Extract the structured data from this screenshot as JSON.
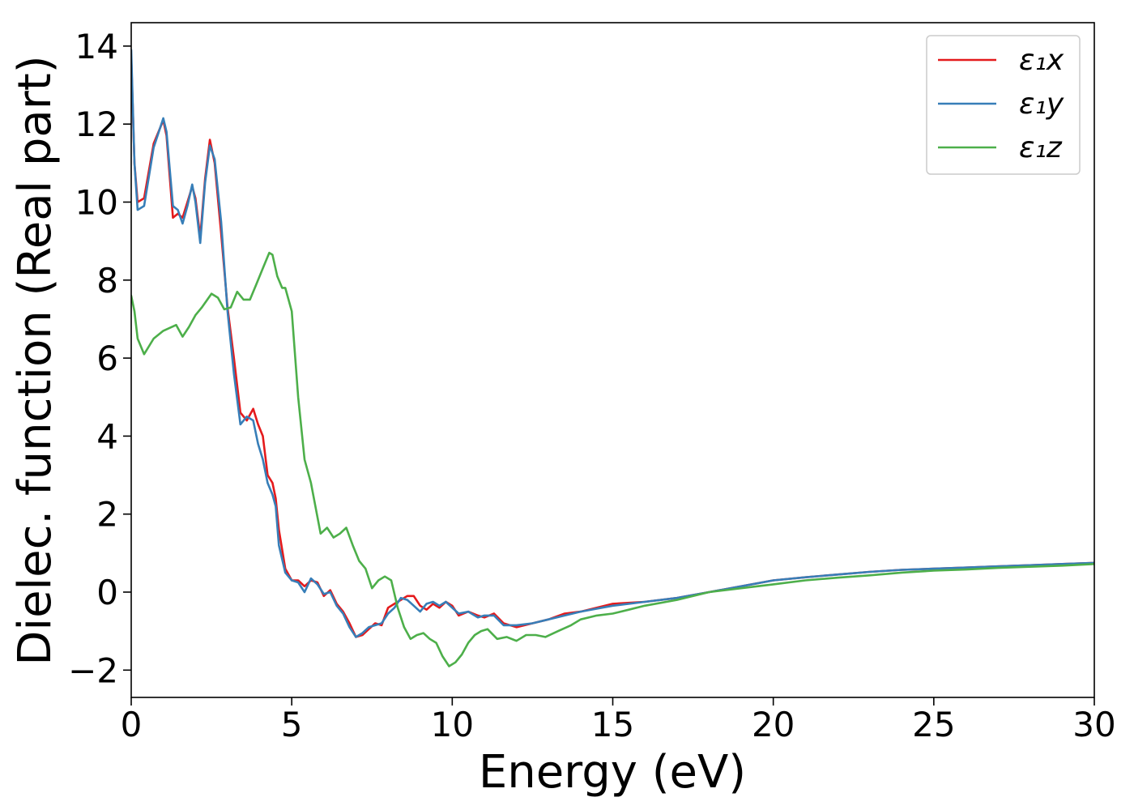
{
  "chart_data": {
    "type": "line",
    "xlabel": "Energy (eV)",
    "ylabel": "Dielec. function (Real part)",
    "xlim": [
      0,
      30
    ],
    "ylim": [
      -2.7,
      14.6
    ],
    "xticks": [
      0,
      5,
      10,
      15,
      20,
      25,
      30
    ],
    "yticks": [
      -2,
      0,
      2,
      4,
      6,
      8,
      10,
      12,
      14
    ],
    "ytick_labels": [
      "−2",
      "0",
      "2",
      "4",
      "6",
      "8",
      "10",
      "12",
      "14"
    ],
    "grid": false,
    "legend_position": "top-right",
    "series": [
      {
        "name": "ε₁x",
        "color": "#e41a1c",
        "x": [
          0,
          0.1,
          0.2,
          0.4,
          0.7,
          1.0,
          1.1,
          1.3,
          1.45,
          1.6,
          1.75,
          1.9,
          2.0,
          2.15,
          2.3,
          2.45,
          2.6,
          2.8,
          3.0,
          3.2,
          3.4,
          3.6,
          3.8,
          3.95,
          4.1,
          4.25,
          4.4,
          4.5,
          4.6,
          4.8,
          5.0,
          5.2,
          5.4,
          5.6,
          5.8,
          6.0,
          6.2,
          6.4,
          6.6,
          6.8,
          7.0,
          7.2,
          7.4,
          7.6,
          7.8,
          8.0,
          8.2,
          8.4,
          8.6,
          8.8,
          9.0,
          9.2,
          9.4,
          9.6,
          9.8,
          10.0,
          10.2,
          10.5,
          10.8,
          11.0,
          11.3,
          11.6,
          12.0,
          12.5,
          13.0,
          13.5,
          14.0,
          15.0,
          16.0,
          17.0,
          18.0,
          19.0,
          20.0,
          21.0,
          22.0,
          23.0,
          24.0,
          25.0,
          26.0,
          27.0,
          28.0,
          29.0,
          30.0
        ],
        "values": [
          13.7,
          11.0,
          10.0,
          10.1,
          11.5,
          12.1,
          11.7,
          9.6,
          9.7,
          9.6,
          10.0,
          10.4,
          10.1,
          9.1,
          10.6,
          11.6,
          11.0,
          9.2,
          7.3,
          6.0,
          4.6,
          4.4,
          4.7,
          4.3,
          4.0,
          3.0,
          2.8,
          2.4,
          1.6,
          0.6,
          0.3,
          0.3,
          0.15,
          0.3,
          0.25,
          -0.1,
          0.05,
          -0.3,
          -0.5,
          -0.8,
          -1.15,
          -1.1,
          -0.95,
          -0.8,
          -0.85,
          -0.4,
          -0.3,
          -0.2,
          -0.1,
          -0.1,
          -0.35,
          -0.45,
          -0.3,
          -0.4,
          -0.25,
          -0.35,
          -0.6,
          -0.5,
          -0.6,
          -0.65,
          -0.55,
          -0.8,
          -0.9,
          -0.8,
          -0.7,
          -0.55,
          -0.5,
          -0.3,
          -0.25,
          -0.15,
          0.0,
          0.15,
          0.3,
          0.38,
          0.45,
          0.52,
          0.57,
          0.6,
          0.63,
          0.66,
          0.69,
          0.72,
          0.75
        ]
      },
      {
        "name": "ε₁y",
        "color": "#377eb8",
        "x": [
          0,
          0.1,
          0.2,
          0.4,
          0.7,
          1.0,
          1.1,
          1.3,
          1.45,
          1.6,
          1.75,
          1.9,
          2.0,
          2.15,
          2.3,
          2.45,
          2.6,
          2.8,
          3.0,
          3.2,
          3.4,
          3.6,
          3.8,
          3.95,
          4.1,
          4.25,
          4.4,
          4.5,
          4.6,
          4.8,
          5.0,
          5.2,
          5.4,
          5.6,
          5.8,
          6.0,
          6.2,
          6.4,
          6.6,
          6.8,
          7.0,
          7.2,
          7.4,
          7.6,
          7.8,
          8.0,
          8.2,
          8.4,
          8.6,
          8.8,
          9.0,
          9.2,
          9.4,
          9.6,
          9.8,
          10.0,
          10.2,
          10.5,
          10.8,
          11.0,
          11.3,
          11.6,
          12.0,
          12.5,
          13.0,
          13.5,
          14.0,
          15.0,
          16.0,
          17.0,
          18.0,
          19.0,
          20.0,
          21.0,
          22.0,
          23.0,
          24.0,
          25.0,
          26.0,
          27.0,
          28.0,
          29.0,
          30.0
        ],
        "values": [
          13.9,
          11.0,
          9.8,
          9.9,
          11.4,
          12.15,
          11.8,
          9.9,
          9.8,
          9.45,
          9.9,
          10.45,
          10.0,
          8.95,
          10.5,
          11.45,
          11.1,
          9.5,
          7.2,
          5.6,
          4.3,
          4.5,
          4.4,
          3.8,
          3.4,
          2.8,
          2.5,
          2.2,
          1.2,
          0.5,
          0.3,
          0.25,
          0.0,
          0.35,
          0.2,
          -0.05,
          0.0,
          -0.35,
          -0.55,
          -0.9,
          -1.15,
          -1.05,
          -0.9,
          -0.85,
          -0.8,
          -0.55,
          -0.4,
          -0.15,
          -0.2,
          -0.35,
          -0.5,
          -0.3,
          -0.25,
          -0.35,
          -0.25,
          -0.4,
          -0.55,
          -0.5,
          -0.65,
          -0.6,
          -0.6,
          -0.85,
          -0.85,
          -0.8,
          -0.7,
          -0.6,
          -0.5,
          -0.35,
          -0.25,
          -0.15,
          0.0,
          0.15,
          0.3,
          0.38,
          0.45,
          0.52,
          0.57,
          0.6,
          0.63,
          0.66,
          0.69,
          0.72,
          0.75
        ]
      },
      {
        "name": "ε₁z",
        "color": "#4daf4a",
        "x": [
          0,
          0.1,
          0.2,
          0.4,
          0.7,
          1.0,
          1.4,
          1.6,
          1.8,
          2.0,
          2.2,
          2.5,
          2.7,
          2.9,
          3.1,
          3.3,
          3.5,
          3.7,
          3.9,
          4.1,
          4.3,
          4.4,
          4.55,
          4.7,
          4.8,
          5.0,
          5.2,
          5.4,
          5.6,
          5.9,
          6.1,
          6.3,
          6.5,
          6.7,
          6.9,
          7.1,
          7.3,
          7.5,
          7.7,
          7.9,
          8.1,
          8.3,
          8.5,
          8.7,
          8.9,
          9.1,
          9.3,
          9.5,
          9.7,
          9.9,
          10.1,
          10.3,
          10.5,
          10.7,
          10.9,
          11.1,
          11.4,
          11.7,
          12.0,
          12.3,
          12.6,
          12.9,
          13.3,
          13.7,
          14.0,
          14.5,
          15.0,
          15.5,
          16.0,
          17.0,
          18.0,
          19.0,
          20.0,
          21.0,
          22.0,
          23.0,
          24.0,
          25.0,
          26.0,
          27.0,
          28.0,
          29.0,
          30.0
        ],
        "values": [
          7.6,
          7.2,
          6.5,
          6.1,
          6.5,
          6.7,
          6.85,
          6.55,
          6.8,
          7.1,
          7.3,
          7.65,
          7.55,
          7.25,
          7.3,
          7.7,
          7.5,
          7.5,
          7.9,
          8.3,
          8.7,
          8.65,
          8.1,
          7.8,
          7.8,
          7.2,
          5.0,
          3.4,
          2.8,
          1.5,
          1.65,
          1.4,
          1.5,
          1.65,
          1.2,
          0.8,
          0.6,
          0.1,
          0.3,
          0.4,
          0.3,
          -0.4,
          -0.9,
          -1.2,
          -1.1,
          -1.05,
          -1.2,
          -1.3,
          -1.65,
          -1.9,
          -1.8,
          -1.6,
          -1.3,
          -1.1,
          -1.0,
          -0.95,
          -1.2,
          -1.15,
          -1.25,
          -1.1,
          -1.1,
          -1.15,
          -1.0,
          -0.85,
          -0.7,
          -0.6,
          -0.55,
          -0.45,
          -0.35,
          -0.2,
          0.0,
          0.1,
          0.2,
          0.3,
          0.37,
          0.43,
          0.5,
          0.55,
          0.58,
          0.62,
          0.65,
          0.68,
          0.72
        ]
      }
    ]
  }
}
